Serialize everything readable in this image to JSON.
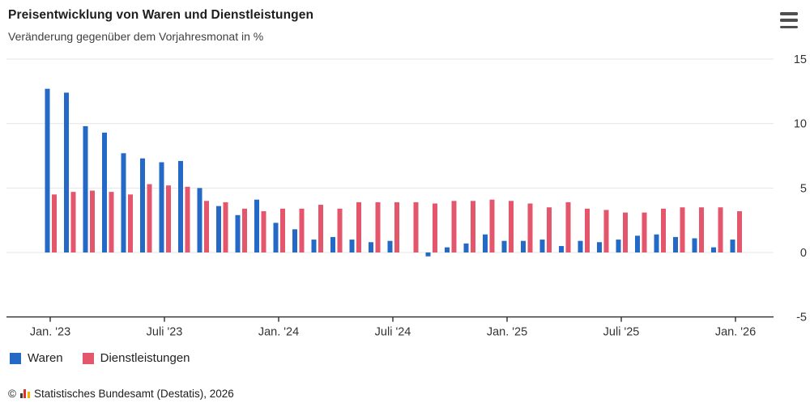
{
  "header": {
    "title": "Preisentwicklung von Waren und Dienstleistungen",
    "subtitle": "Veränderung gegenüber dem Vorjahresmonat in %",
    "menu_icon": "hamburger-menu-icon"
  },
  "chart_data": {
    "type": "bar",
    "title": "Preisentwicklung von Waren und Dienstleistungen",
    "subtitle": "Veränderung gegenüber dem Vorjahresmonat in %",
    "ylabel": "%",
    "ylim": [
      -5,
      15
    ],
    "yticks": [
      15,
      10,
      5,
      0,
      -5
    ],
    "grid": true,
    "legend_position": "bottom-left",
    "x": [
      "2023-01",
      "2023-02",
      "2023-03",
      "2023-04",
      "2023-05",
      "2023-06",
      "2023-07",
      "2023-08",
      "2023-09",
      "2023-10",
      "2023-11",
      "2023-12",
      "2024-01",
      "2024-02",
      "2024-03",
      "2024-04",
      "2024-05",
      "2024-06",
      "2024-07",
      "2024-08",
      "2024-09",
      "2024-10",
      "2024-11",
      "2024-12",
      "2025-01",
      "2025-02",
      "2025-03",
      "2025-04",
      "2025-05",
      "2025-06",
      "2025-07",
      "2025-08",
      "2025-09",
      "2025-10",
      "2025-11",
      "2025-12",
      "2026-01"
    ],
    "xticks": [
      {
        "index": 0,
        "label": "Jan. '23"
      },
      {
        "index": 6,
        "label": "Juli '23"
      },
      {
        "index": 12,
        "label": "Jan. '24"
      },
      {
        "index": 18,
        "label": "Juli '24"
      },
      {
        "index": 24,
        "label": "Jan. '25"
      },
      {
        "index": 30,
        "label": "Juli '25"
      },
      {
        "index": 36,
        "label": "Jan. '26"
      }
    ],
    "series": [
      {
        "name": "Waren",
        "color": "#2569c7",
        "values": [
          12.7,
          12.4,
          9.8,
          9.3,
          7.7,
          7.3,
          7.0,
          7.1,
          5.0,
          3.6,
          2.9,
          4.1,
          2.3,
          1.8,
          1.0,
          1.2,
          1.0,
          0.8,
          0.9,
          0.0,
          -0.3,
          0.4,
          0.7,
          1.4,
          0.9,
          0.9,
          1.0,
          0.5,
          0.9,
          0.8,
          1.0,
          1.3,
          1.4,
          1.2,
          1.1,
          0.4,
          1.0
        ]
      },
      {
        "name": "Dienstleistungen",
        "color": "#e4566c",
        "values": [
          4.5,
          4.7,
          4.8,
          4.7,
          4.5,
          5.3,
          5.2,
          5.1,
          4.0,
          3.9,
          3.4,
          3.2,
          3.4,
          3.4,
          3.7,
          3.4,
          3.9,
          3.9,
          3.9,
          3.9,
          3.8,
          4.0,
          4.0,
          4.1,
          4.0,
          3.8,
          3.5,
          3.9,
          3.4,
          3.3,
          3.1,
          3.1,
          3.4,
          3.5,
          3.5,
          3.5,
          3.2
        ]
      }
    ]
  },
  "legend": {
    "items": [
      {
        "label": "Waren",
        "color": "#2569c7"
      },
      {
        "label": "Dienstleistungen",
        "color": "#e4566c"
      }
    ]
  },
  "footer": {
    "copyright": "©",
    "source": "Statistisches Bundesamt (Destatis), 2026",
    "logo_colors": [
      "#3c3c3b",
      "#e2332b",
      "#f8b200"
    ]
  }
}
